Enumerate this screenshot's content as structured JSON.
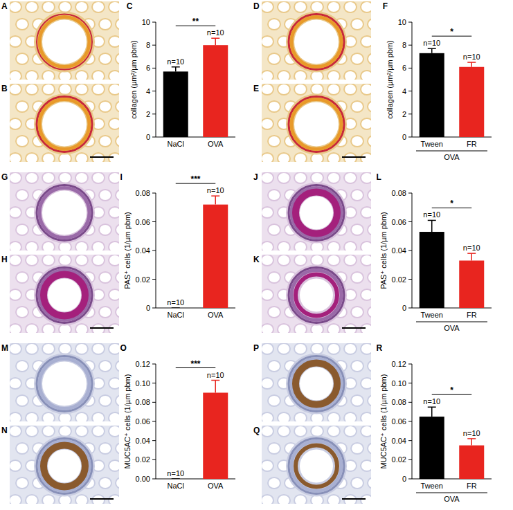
{
  "images": {
    "labels": [
      "A",
      "B",
      "D",
      "E",
      "G",
      "H",
      "J",
      "K",
      "M",
      "N",
      "P",
      "Q"
    ]
  },
  "chart_data": [
    {
      "type": "bar",
      "panel": "C",
      "categories": [
        "NaCl",
        "OVA"
      ],
      "values": [
        5.7,
        8.0
      ],
      "errors": [
        0.4,
        0.6
      ],
      "colors": [
        "#000000",
        "#e8251f"
      ],
      "y_label": "collagen (µm²/µm pbm)",
      "ylim": [
        0,
        10
      ],
      "yticks": [
        0,
        2,
        4,
        6,
        8,
        10
      ],
      "n_labels": [
        "n=10",
        "n=10"
      ],
      "significance": "**"
    },
    {
      "type": "bar",
      "panel": "F",
      "categories": [
        "Tween",
        "FR"
      ],
      "values": [
        7.3,
        6.1
      ],
      "errors": [
        0.4,
        0.4
      ],
      "colors": [
        "#000000",
        "#e8251f"
      ],
      "y_label": "collagen (µm²/µm pbm)",
      "ylim": [
        0,
        10
      ],
      "yticks": [
        0,
        2,
        4,
        6,
        8,
        10
      ],
      "n_labels": [
        "n=10",
        "n=10"
      ],
      "significance": "*",
      "group_label": "OVA"
    },
    {
      "type": "bar",
      "panel": "I",
      "categories": [
        "NaCl",
        "OVA"
      ],
      "values": [
        0,
        0.072
      ],
      "errors": [
        0,
        0.006
      ],
      "colors": [
        "#000000",
        "#e8251f"
      ],
      "y_label": "PAS⁺ cells (1/µm pbm)",
      "ylim": [
        0,
        0.08
      ],
      "yticks": [
        0,
        0.02,
        0.04,
        0.06,
        0.08
      ],
      "n_labels": [
        "n=10",
        "n=10"
      ],
      "significance": "***"
    },
    {
      "type": "bar",
      "panel": "L",
      "categories": [
        "Tween",
        "FR"
      ],
      "values": [
        0.053,
        0.033
      ],
      "errors": [
        0.008,
        0.005
      ],
      "colors": [
        "#000000",
        "#e8251f"
      ],
      "y_label": "PAS⁺ cells (1/µm pbm)",
      "ylim": [
        0,
        0.08
      ],
      "yticks": [
        0,
        0.02,
        0.04,
        0.06,
        0.08
      ],
      "n_labels": [
        "n=10",
        "n=10"
      ],
      "significance": "*",
      "group_label": "OVA"
    },
    {
      "type": "bar",
      "panel": "O",
      "categories": [
        "NaCl",
        "OVA"
      ],
      "values": [
        0,
        0.09
      ],
      "errors": [
        0,
        0.013
      ],
      "colors": [
        "#000000",
        "#e8251f"
      ],
      "y_label": "MUC5AC⁺ cells (1/µm pbm)",
      "ylim": [
        0,
        0.12
      ],
      "yticks": [
        {
          "value": 0,
          "label": "0.00"
        },
        0.02,
        0.04,
        0.06,
        0.08,
        {
          "value": 0.1,
          "label": "0.10"
        },
        0.12
      ],
      "n_labels": [
        "n=10",
        "n=10"
      ],
      "significance": "***"
    },
    {
      "type": "bar",
      "panel": "R",
      "categories": [
        "Tween",
        "FR"
      ],
      "values": [
        0.065,
        0.035
      ],
      "errors": [
        0.01,
        0.007
      ],
      "colors": [
        "#000000",
        "#e8251f"
      ],
      "y_label": "MUC5AC⁺ cells (1/µm pbm)",
      "ylim": [
        0,
        0.12
      ],
      "yticks": [
        0,
        0.02,
        0.04,
        0.06,
        0.08,
        {
          "value": 0.1,
          "label": "0.10"
        },
        0.12
      ],
      "n_labels": [
        "n=10",
        "n=10"
      ],
      "significance": "*",
      "group_label": "OVA"
    }
  ]
}
